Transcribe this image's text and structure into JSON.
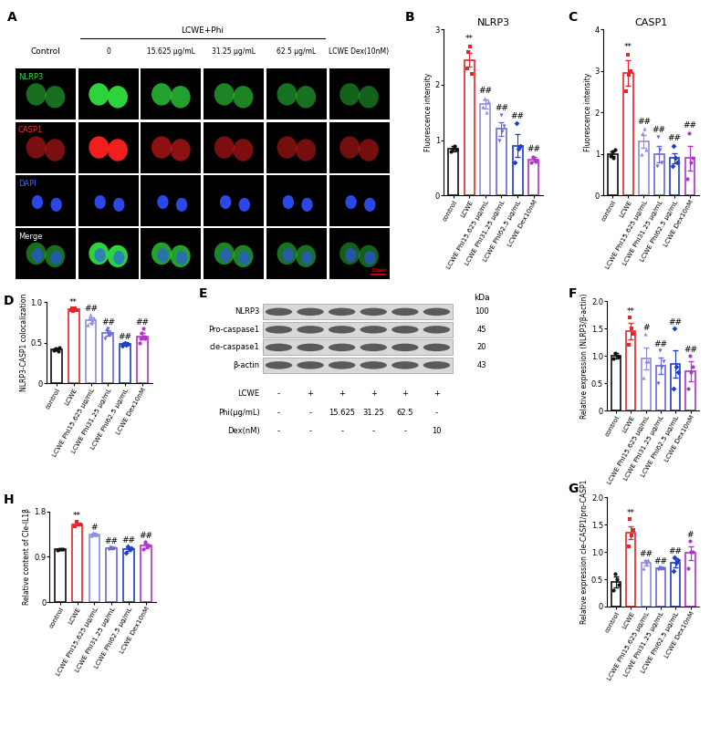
{
  "chart_data": [
    {
      "panel": "B",
      "type": "bar",
      "title": "NLRP3",
      "y_label": "Fluorescence intensity",
      "categories": [
        "control",
        "LCWE",
        "LCWE Phi15.625 μg/mL",
        "LCWE Phi31.25 μg/mL",
        "LCWE Phi62.5 μg/mL",
        "LCWE Dex10nM"
      ],
      "values": [
        0.85,
        2.45,
        1.65,
        1.2,
        0.9,
        0.65
      ],
      "errors": [
        0.05,
        0.12,
        0.08,
        0.12,
        0.2,
        0.04
      ],
      "points": [
        [
          0.8,
          0.85,
          0.9,
          0.82
        ],
        [
          2.3,
          2.6,
          2.7,
          2.2
        ],
        [
          1.6,
          1.75,
          1.5,
          1.7
        ],
        [
          1.0,
          1.45,
          1.15,
          1.25
        ],
        [
          0.6,
          1.3,
          0.85,
          0.9
        ],
        [
          0.6,
          0.7,
          0.65,
          0.62
        ]
      ],
      "significance": [
        null,
        "**",
        "##",
        "##",
        "##",
        "##"
      ],
      "colors": [
        "#111111",
        "#e8262a",
        "#8c8ee0",
        "#6a6ad6",
        "#1f3fc4",
        "#b335c8"
      ],
      "ylim": [
        0,
        3
      ],
      "yticks": [
        0,
        1,
        2,
        3
      ]
    },
    {
      "panel": "C",
      "type": "bar",
      "title": "CASP1",
      "y_label": "Fluorescence intensity",
      "categories": [
        "control",
        "LCWE",
        "LCWE Phi15.625 μg/mL",
        "LCWE Phi31.25 μg/mL",
        "LCWE Phi62.5 μg/mL",
        "LCWE Dex10nM"
      ],
      "values": [
        1.0,
        2.95,
        1.3,
        1.0,
        0.9,
        0.9
      ],
      "errors": [
        0.05,
        0.3,
        0.15,
        0.2,
        0.12,
        0.3
      ],
      "points": [
        [
          0.95,
          1.05,
          0.9,
          1.1
        ],
        [
          2.5,
          3.4,
          2.9,
          3.0
        ],
        [
          1.0,
          1.5,
          1.6,
          1.1
        ],
        [
          0.7,
          1.4,
          1.1,
          0.8
        ],
        [
          0.7,
          1.2,
          0.9,
          0.8
        ],
        [
          0.4,
          1.5,
          0.8,
          0.9
        ]
      ],
      "significance": [
        null,
        "**",
        "##",
        "##",
        "##",
        "##"
      ],
      "colors": [
        "#111111",
        "#e8262a",
        "#8c8ee0",
        "#6a6ad6",
        "#1f3fc4",
        "#b335c8"
      ],
      "ylim": [
        0,
        4
      ],
      "yticks": [
        0,
        1,
        2,
        3,
        4
      ]
    },
    {
      "panel": "D",
      "type": "bar",
      "y_label": "NLRP3-CASP1 colocalization",
      "categories": [
        "control",
        "LCWE",
        "LCWE Phi15.625 μg/mL",
        "LCWE Phi31.25 μg/mL",
        "LCWE Phi62.5 μg/mL",
        "LCWE Dex10nM"
      ],
      "values": [
        0.42,
        0.91,
        0.78,
        0.62,
        0.48,
        0.58
      ],
      "errors": [
        0.01,
        0.01,
        0.03,
        0.03,
        0.01,
        0.04
      ],
      "points": [
        [
          0.41,
          0.42,
          0.43,
          0.42,
          0.4,
          0.44
        ],
        [
          0.9,
          0.92,
          0.89,
          0.91,
          0.93,
          0.9
        ],
        [
          0.72,
          0.8,
          0.85,
          0.75,
          0.78,
          0.8
        ],
        [
          0.55,
          0.65,
          0.68,
          0.6,
          0.62,
          0.6
        ],
        [
          0.46,
          0.48,
          0.5,
          0.47,
          0.49,
          0.48
        ],
        [
          0.5,
          0.55,
          0.62,
          0.68,
          0.58,
          0.55
        ]
      ],
      "significance": [
        null,
        "**",
        "##",
        "##",
        "##",
        "##"
      ],
      "colors": [
        "#111111",
        "#e8262a",
        "#8c8ee0",
        "#6a6ad6",
        "#1f3fc4",
        "#b335c8"
      ],
      "ylim": [
        0,
        1
      ],
      "yticks": [
        0,
        0.5,
        {
          "value": 1,
          "label": "1.0"
        }
      ]
    },
    {
      "panel": "F",
      "type": "bar",
      "y_label": "Relative expression (NLRP3/β-actin)",
      "categories": [
        "control",
        "LCWE",
        "LCWE Phi15.625 μg/mL",
        "LCWE Phi31.25 μg/mL",
        "LCWE Phi62.5 μg/mL",
        "LCWE Dex10nM"
      ],
      "values": [
        1.0,
        1.45,
        0.95,
        0.82,
        0.85,
        0.72
      ],
      "errors": [
        0.05,
        0.15,
        0.2,
        0.15,
        0.25,
        0.18
      ],
      "points": [
        [
          0.95,
          1.05,
          1.0,
          0.98
        ],
        [
          1.2,
          1.7,
          1.5,
          1.4
        ],
        [
          0.6,
          1.4,
          0.9,
          0.9
        ],
        [
          0.5,
          1.1,
          0.8,
          0.9
        ],
        [
          0.4,
          1.5,
          0.8,
          0.7
        ],
        [
          0.4,
          1.0,
          0.7,
          0.8
        ]
      ],
      "significance": [
        null,
        "**",
        "#",
        "##",
        "##",
        "##"
      ],
      "colors": [
        "#111111",
        "#e8262a",
        "#8c8ee0",
        "#6a6ad6",
        "#1f3fc4",
        "#b335c8"
      ],
      "ylim": [
        0,
        2
      ],
      "yticks": [
        0,
        0.5,
        {
          "value": 1,
          "label": "1.0"
        },
        1.5,
        {
          "value": 2,
          "label": "2.0"
        }
      ]
    },
    {
      "panel": "G",
      "type": "bar",
      "y_label": "Relative expression cle-CASP1/pro-CASP1",
      "categories": [
        "control",
        "LCWE",
        "LCWE Phi15.625 μg/mL",
        "LCWE Phi31.25 μg/mL",
        "LCWE Phi62.5 μg/mL",
        "LCWE Dex10nM"
      ],
      "values": [
        0.45,
        1.35,
        0.8,
        0.7,
        0.8,
        0.98
      ],
      "errors": [
        0.1,
        0.12,
        0.05,
        0.02,
        0.08,
        0.12
      ],
      "points": [
        [
          0.3,
          0.6,
          0.5,
          0.4
        ],
        [
          1.1,
          1.6,
          1.3,
          1.4
        ],
        [
          0.7,
          0.85,
          0.8,
          0.85
        ],
        [
          0.68,
          0.72,
          0.7,
          0.7
        ],
        [
          0.65,
          0.9,
          0.8,
          0.85
        ],
        [
          0.7,
          1.2,
          1.0,
          1.0
        ]
      ],
      "significance": [
        null,
        "**",
        "##",
        "##",
        "##",
        "#"
      ],
      "colors": [
        "#111111",
        "#e8262a",
        "#8c8ee0",
        "#6a6ad6",
        "#1f3fc4",
        "#b335c8"
      ],
      "ylim": [
        0,
        2
      ],
      "yticks": [
        0,
        0.5,
        {
          "value": 1,
          "label": "1.0"
        },
        1.5,
        {
          "value": 2,
          "label": "2.0"
        }
      ]
    },
    {
      "panel": "H",
      "type": "bar",
      "y_label": "Relative content of Cle-IL1β",
      "categories": [
        "control",
        "LCWE",
        "LCWE Phi15.625 μg/mL",
        "LCWE Phi31.25 μg/mL",
        "LCWE Phi62.5 μg/mL",
        "LCWE Dex10nM"
      ],
      "values": [
        1.05,
        1.55,
        1.35,
        1.07,
        1.05,
        1.12
      ],
      "errors": [
        0.01,
        0.03,
        0.02,
        0.02,
        0.04,
        0.04
      ],
      "points": [
        [
          1.04,
          1.05,
          1.06,
          1.05
        ],
        [
          1.5,
          1.6,
          1.55,
          1.55
        ],
        [
          1.33,
          1.37,
          1.35,
          1.35
        ],
        [
          1.05,
          1.09,
          1.07,
          1.07
        ],
        [
          0.98,
          1.1,
          1.05,
          1.07
        ],
        [
          1.05,
          1.2,
          1.1,
          1.13
        ]
      ],
      "significance": [
        null,
        "**",
        "#",
        "##",
        "##",
        "##"
      ],
      "colors": [
        "#111111",
        "#e8262a",
        "#8c8ee0",
        "#6a6ad6",
        "#1f3fc4",
        "#b335c8"
      ],
      "ylim": [
        0,
        1.8
      ],
      "yticks": [
        0,
        0.9,
        1.8
      ]
    }
  ],
  "panel_A": {
    "panel": "A",
    "columns": [
      "Control",
      "0",
      "15.625 μg/mL",
      "31.25 μg/mL",
      "62.5 μg/mL",
      "LCWE Dex(10nM)"
    ],
    "group_label": "LCWE+Phi",
    "rows": [
      "NLRP3",
      "CASP1",
      "DAPI",
      "Merge"
    ],
    "scale_bar": "10μm"
  },
  "panel_E": {
    "panel": "E",
    "kda_header": "kDa",
    "proteins": [
      {
        "name": "NLRP3",
        "kda": 100
      },
      {
        "name": "Pro-caspase1",
        "kda": 45
      },
      {
        "name": "cle-caspase1",
        "kda": 20
      },
      {
        "name": "β-actin",
        "kda": 43
      }
    ],
    "treatments": [
      {
        "name": "LCWE",
        "values": [
          "-",
          "+",
          "+",
          "+",
          "+",
          "+"
        ]
      },
      {
        "name": "Phi(μg/mL)",
        "values": [
          "-",
          "-",
          "15.625",
          "31.25",
          "62.5",
          "-"
        ]
      },
      {
        "name": "Dex(nM)",
        "values": [
          "-",
          "-",
          "-",
          "-",
          "-",
          "10"
        ]
      }
    ]
  }
}
